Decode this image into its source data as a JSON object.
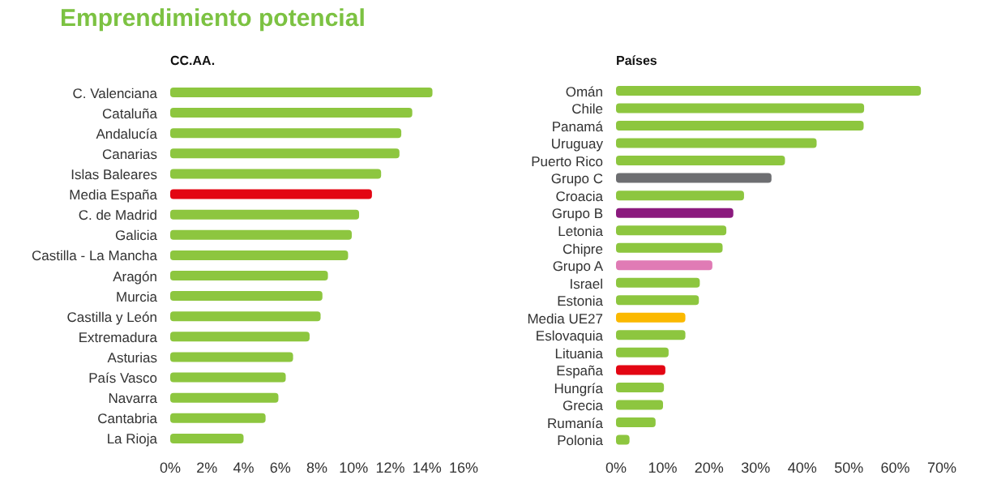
{
  "chart_data": [
    {
      "type": "bar",
      "orientation": "horizontal",
      "title": "Emprendimiento potencial",
      "subtitle": "CC.AA.",
      "categories": [
        "C. Valenciana",
        "Cataluña",
        "Andalucía",
        "Canarias",
        "Islas Baleares",
        "Media España",
        "C. de Madrid",
        "Galicia",
        "Castilla - La Mancha",
        "Aragón",
        "Murcia",
        "Castilla y León",
        "Extremadura",
        "Asturias",
        "País Vasco",
        "Navarra",
        "Cantabria",
        "La Rioja"
      ],
      "values": [
        14.3,
        13.2,
        12.6,
        12.5,
        11.5,
        11.0,
        10.3,
        9.9,
        9.7,
        8.6,
        8.3,
        8.2,
        7.6,
        6.7,
        6.3,
        5.9,
        5.2,
        4.0
      ],
      "colors": [
        "#8dc63f",
        "#8dc63f",
        "#8dc63f",
        "#8dc63f",
        "#8dc63f",
        "#e30613",
        "#8dc63f",
        "#8dc63f",
        "#8dc63f",
        "#8dc63f",
        "#8dc63f",
        "#8dc63f",
        "#8dc63f",
        "#8dc63f",
        "#8dc63f",
        "#8dc63f",
        "#8dc63f",
        "#8dc63f"
      ],
      "xlim": [
        0,
        16
      ],
      "xticks": [
        {
          "value": 0,
          "label": "0%"
        },
        {
          "value": 2,
          "label": "2%"
        },
        {
          "value": 4,
          "label": "4%"
        },
        {
          "value": 6,
          "label": "6%"
        },
        {
          "value": 8,
          "label": "8%"
        },
        {
          "value": 10,
          "label": "10%"
        },
        {
          "value": 12,
          "label": "12%"
        },
        {
          "value": 14,
          "label": "14%"
        },
        {
          "value": 16,
          "label": "16%"
        }
      ],
      "grid": false,
      "legend": false
    },
    {
      "type": "bar",
      "orientation": "horizontal",
      "subtitle": "Países",
      "categories": [
        "Omán",
        "Chile",
        "Panamá",
        "Uruguay",
        "Puerto Rico",
        "Grupo C",
        "Croacia",
        "Grupo B",
        "Letonia",
        "Chipre",
        "Grupo A",
        "Israel",
        "Estonia",
        "Media UE27",
        "Eslovaquia",
        "Lituania",
        "España",
        "Hungría",
        "Grecia",
        "Rumanía",
        "Polonia"
      ],
      "values": [
        65.5,
        53.3,
        53.2,
        43.1,
        36.3,
        33.4,
        27.5,
        25.2,
        23.7,
        22.9,
        20.7,
        18.0,
        17.8,
        14.9,
        14.9,
        11.3,
        10.6,
        10.3,
        10.1,
        8.5,
        2.9
      ],
      "colors": [
        "#8dc63f",
        "#8dc63f",
        "#8dc63f",
        "#8dc63f",
        "#8dc63f",
        "#6d6e71",
        "#8dc63f",
        "#8b1a7e",
        "#8dc63f",
        "#8dc63f",
        "#e07bb5",
        "#8dc63f",
        "#8dc63f",
        "#fbb900",
        "#8dc63f",
        "#8dc63f",
        "#e30613",
        "#8dc63f",
        "#8dc63f",
        "#8dc63f",
        "#8dc63f"
      ],
      "xlim": [
        0,
        70
      ],
      "xticks": [
        {
          "value": 0,
          "label": "0%"
        },
        {
          "value": 10,
          "label": "10%"
        },
        {
          "value": 20,
          "label": "20%"
        },
        {
          "value": 30,
          "label": "30%"
        },
        {
          "value": 40,
          "label": "40%"
        },
        {
          "value": 50,
          "label": "50%"
        },
        {
          "value": 60,
          "label": "60%"
        },
        {
          "value": 70,
          "label": "70%"
        }
      ],
      "grid": false,
      "legend": false
    }
  ]
}
